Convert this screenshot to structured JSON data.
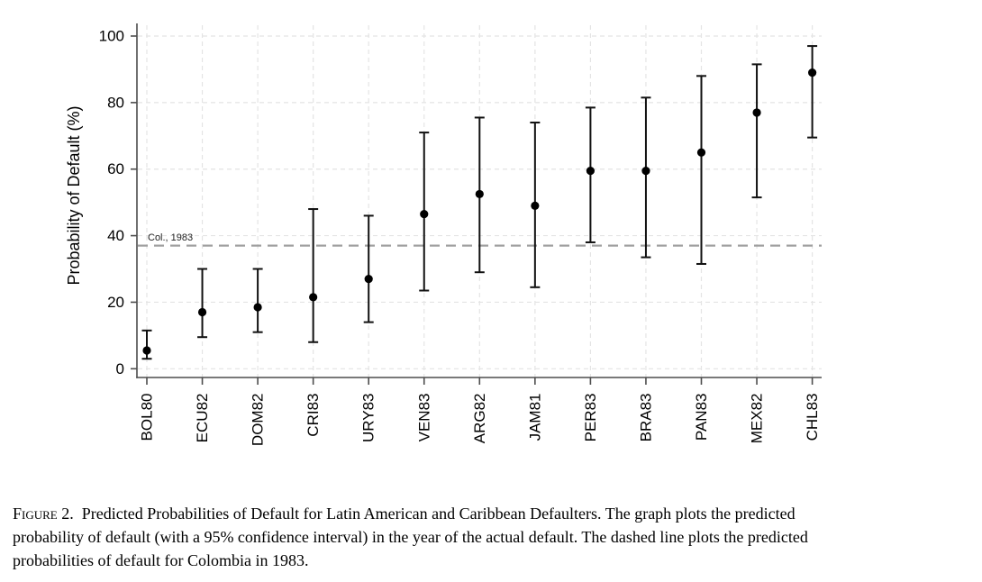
{
  "figure": {
    "caption": {
      "label": "Figure 2.",
      "line1_rest": "Predicted Probabilities of Default for Latin American and Caribbean Defaulters. The graph plots the predicted",
      "line2": "probability of default (with a 95% confidence interval) in the year of the actual default. The dashed line plots the predicted",
      "line3": "probabilities of default for Colombia in 1983."
    }
  },
  "chart_data": {
    "type": "scatter",
    "subtype": "point-estimates-with-95-percent-confidence-intervals",
    "title": "",
    "xlabel": "",
    "ylabel": "Probability of Default (%)",
    "ylim": [
      0,
      100
    ],
    "yticks": [
      0,
      20,
      40,
      60,
      80,
      100
    ],
    "grid": true,
    "legend_position": "none",
    "categories": [
      "BOL80",
      "ECU82",
      "DOM82",
      "CRI83",
      "URY83",
      "VEN83",
      "ARG82",
      "JAM81",
      "PER83",
      "BRA83",
      "PAN83",
      "MEX82",
      "CHL83"
    ],
    "series": [
      {
        "name": "Predicted probability of default (%)",
        "values": [
          5.5,
          17,
          18.5,
          21.5,
          27,
          46.5,
          52.5,
          49,
          59.5,
          59.5,
          65,
          77,
          89
        ],
        "ci_low": [
          3,
          9.5,
          11,
          8,
          14,
          23.5,
          29,
          24.5,
          38,
          33.5,
          31.5,
          51.5,
          69.5
        ],
        "ci_high": [
          11.5,
          30,
          30,
          48,
          46,
          71,
          75.5,
          74,
          78.5,
          81.5,
          88,
          91.5,
          97
        ]
      }
    ],
    "reference_line": {
      "value": 37,
      "label": "Col., 1983"
    },
    "colors": {
      "marker": "#000000",
      "error_bar": "#111111",
      "axis": "#4d4d4d",
      "tick_text": "#000000",
      "grid": "#e4e4e4",
      "reference": "#a0a0a0",
      "background": "#ffffff"
    }
  }
}
